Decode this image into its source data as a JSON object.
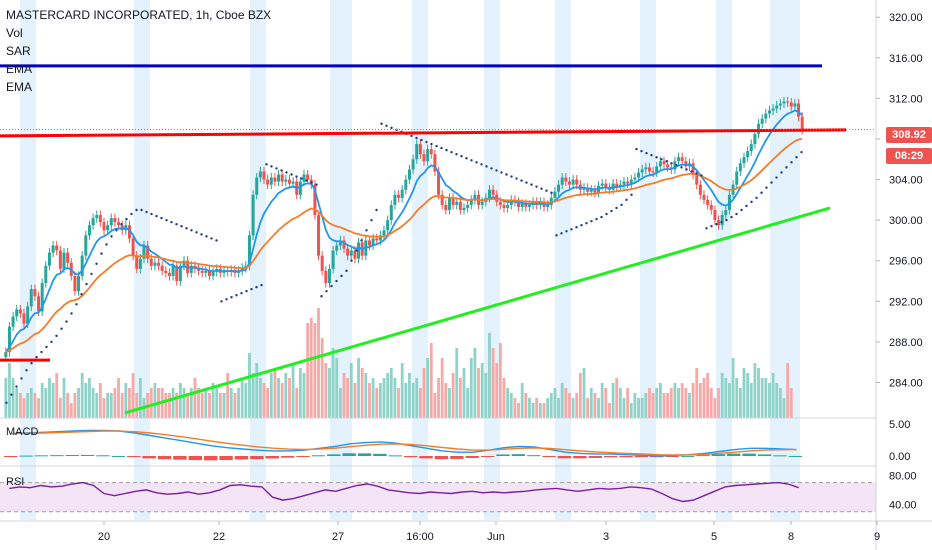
{
  "legend": {
    "title": "MASTERCARD INCORPORATED, 1h, Cboe BZX",
    "items": [
      "Vol",
      "SAR",
      "EMA",
      "EMA"
    ]
  },
  "price_tags": {
    "last": "308.92",
    "countdown": "08:29"
  },
  "panes": {
    "macd": "MACD",
    "rsi": "RSI"
  },
  "colors": {
    "up": "#26a69a",
    "down": "#ef5350",
    "ema_fast": "#2196f3",
    "ema_slow": "#f57c28",
    "sar": "#1e3a8a",
    "resistance_top": "#0000cc",
    "resistance_mid": "#ff0000",
    "support": "#22ee22",
    "session_band": "#e3f2fd",
    "rsi_band": "#f3e5f5",
    "rsi_line": "#7b1fa2"
  },
  "chart_data": [
    {
      "type": "candlestick",
      "title": "MASTERCARD INCORPORATED, 1h, Cboe BZX",
      "y_ticks": [
        284,
        288,
        292,
        296,
        300,
        304,
        308,
        312,
        316,
        320
      ],
      "x_ticks": [
        "20",
        "22",
        "27",
        "16:00",
        "Jun",
        "3",
        "5",
        "8",
        "9"
      ],
      "ylim": [
        280.5,
        321.5
      ],
      "last_price": 308.92,
      "closes": [
        287.0,
        289.5,
        290.5,
        291.2,
        290.8,
        289.8,
        291.5,
        293.2,
        292.5,
        291.0,
        293.8,
        295.5,
        296.8,
        297.5,
        297.0,
        295.2,
        296.8,
        295.8,
        294.5,
        293.0,
        294.5,
        296.5,
        298.5,
        299.5,
        300.2,
        300.5,
        299.8,
        299.0,
        299.5,
        300.2,
        299.8,
        299.5,
        299.0,
        299.5,
        298.2,
        296.5,
        295.2,
        296.2,
        297.5,
        296.2,
        295.5,
        295.8,
        295.5,
        295.0,
        294.8,
        294.5,
        295.5,
        294.0,
        295.5,
        296.0,
        294.8,
        295.5,
        295.2,
        295.0,
        294.8,
        295.0,
        294.5,
        294.9,
        295.2,
        294.8,
        295.0,
        294.9,
        295.1,
        294.8,
        295.0,
        295.3,
        295.5,
        298.5,
        302.5,
        304.2,
        304.8,
        304.0,
        303.5,
        304.2,
        303.8,
        304.5,
        303.8,
        304.0,
        303.6,
        303.8,
        302.5,
        303.8,
        304.5,
        304.0,
        303.5,
        300.5,
        296.5,
        295.0,
        293.8,
        295.2,
        297.0,
        297.5,
        298.0,
        297.2,
        296.5,
        297.0,
        296.2,
        297.8,
        296.5,
        298.0,
        297.5,
        298.2,
        298.0,
        298.5,
        299.0,
        300.0,
        301.5,
        302.5,
        302.2,
        303.0,
        304.0,
        305.0,
        306.0,
        307.5,
        306.5,
        305.8,
        307.0,
        306.5,
        304.8,
        302.5,
        301.5,
        301.0,
        302.2,
        301.5,
        301.8,
        301.0,
        301.2,
        301.5,
        302.0,
        302.5,
        301.5,
        301.8,
        302.2,
        303.0,
        302.5,
        301.8,
        301.5,
        301.2,
        301.5,
        302.0,
        301.8,
        301.3,
        301.6,
        301.3,
        301.5,
        301.8,
        301.5,
        301.8,
        301.3,
        301.5,
        302.2,
        302.8,
        303.5,
        304.2,
        303.8,
        303.5,
        304.0,
        303.5,
        303.0,
        303.2,
        302.8,
        303.0,
        302.7,
        303.4,
        303.6,
        303.2,
        303.0,
        303.6,
        303.3,
        303.5,
        303.8,
        303.6,
        304.0,
        304.2,
        304.7,
        305.0,
        305.2,
        304.8,
        304.7,
        305.3,
        305.8,
        305.5,
        305.2,
        305.0,
        305.8,
        306.2,
        305.8,
        305.3,
        305.6,
        304.5,
        303.5,
        302.5,
        302.0,
        301.5,
        301.0,
        300.0,
        299.5,
        300.5,
        301.0,
        302.5,
        303.5,
        304.8,
        305.6,
        306.2,
        306.8,
        307.5,
        308.5,
        309.5,
        310.0,
        310.5,
        310.8,
        311.0,
        311.3,
        311.5,
        311.7,
        311.6,
        311.2,
        311.5,
        310.2,
        308.9
      ],
      "volume_series": [
        8,
        11,
        8,
        6,
        5,
        4,
        5,
        6,
        5,
        4,
        7,
        6,
        8,
        7,
        9,
        4,
        8,
        5,
        3,
        5,
        6,
        9,
        7,
        8,
        6,
        5,
        7,
        4,
        5,
        5,
        6,
        8,
        5,
        7,
        6,
        9,
        5,
        8,
        4,
        5,
        6,
        7,
        6,
        6,
        5,
        5,
        6,
        5,
        7,
        6,
        5,
        6,
        8,
        6,
        5,
        6,
        5,
        7,
        6,
        5,
        5,
        9,
        6,
        5,
        6,
        8,
        7,
        13,
        9,
        11,
        8,
        7,
        6,
        9,
        10,
        8,
        7,
        9,
        8,
        11,
        6,
        10,
        9,
        19,
        20,
        19,
        22,
        16,
        11,
        10,
        14,
        12,
        6,
        9,
        8,
        11,
        7,
        12,
        10,
        9,
        7,
        8,
        6,
        7,
        8,
        9,
        10,
        8,
        6,
        11,
        7,
        9,
        7,
        8,
        6,
        10,
        12,
        15,
        5,
        8,
        12,
        7,
        6,
        9,
        14,
        8,
        10,
        6,
        12,
        14,
        10,
        11,
        9,
        17,
        14,
        11,
        15,
        8,
        6,
        5,
        4,
        3,
        7,
        5,
        4,
        3,
        4,
        3,
        3,
        4,
        5,
        6,
        4,
        7,
        6,
        5,
        4,
        5,
        9,
        10,
        4,
        6,
        5,
        4,
        7,
        6,
        3,
        7,
        8,
        6,
        4,
        6,
        3,
        5,
        4,
        4,
        5,
        6,
        5,
        6,
        7,
        5,
        5,
        6,
        7,
        6,
        7,
        6,
        5,
        7,
        10,
        7,
        8,
        9,
        6,
        4,
        6,
        9,
        8,
        7,
        12,
        8,
        6,
        10,
        9,
        7,
        11,
        10,
        8,
        8,
        7,
        9,
        7,
        6,
        4,
        11,
        6
      ],
      "sar_series": [
        282.0,
        282.8,
        283.6,
        284.4,
        285.2,
        285.9,
        286.5,
        287.0,
        287.5,
        288.0,
        288.6,
        289.3,
        290.0,
        290.8,
        291.7,
        292.7,
        293.7,
        294.7,
        295.7,
        296.7,
        297.6,
        298.4,
        299.0,
        299.6,
        300.1,
        300.6,
        301.0,
        301.0,
        300.8,
        300.6,
        300.4,
        300.2,
        300.0,
        299.8,
        299.6,
        299.4,
        299.2,
        299.0,
        298.8,
        298.6,
        298.4,
        298.2,
        298.0,
        292.0,
        292.2,
        292.4,
        292.6,
        292.8,
        293.0,
        293.2,
        293.4,
        293.6,
        305.5,
        305.3,
        305.1,
        304.9,
        304.7,
        304.5,
        304.3,
        304.1,
        303.9,
        303.7,
        303.5,
        292.5,
        293.0,
        293.5,
        294.0,
        294.5,
        295.0,
        296.0,
        297.0,
        298.0,
        299.0,
        300.0,
        301.0,
        309.5,
        309.3,
        309.1,
        308.9,
        308.7,
        308.5,
        308.3,
        308.1,
        307.9,
        307.7,
        307.5,
        307.3,
        307.1,
        306.9,
        306.7,
        306.5,
        306.3,
        306.1,
        305.9,
        305.7,
        305.5,
        305.3,
        305.1,
        304.9,
        304.7,
        304.5,
        304.3,
        304.1,
        303.9,
        303.7,
        303.5,
        303.3,
        303.1,
        302.9,
        302.7,
        298.5,
        298.7,
        298.9,
        299.1,
        299.3,
        299.5,
        299.7,
        299.9,
        300.1,
        300.3,
        300.6,
        300.9,
        301.2,
        301.5,
        302.0,
        302.5,
        307.0,
        306.8,
        306.6,
        306.4,
        306.2,
        306.0,
        305.8,
        305.6,
        305.4,
        305.2,
        305.0,
        304.8,
        304.6,
        304.4,
        299.2,
        299.4,
        299.6,
        299.8,
        300.0,
        300.3,
        300.6,
        301.0,
        301.4,
        301.8,
        302.2,
        302.7,
        303.2,
        303.7,
        304.2,
        304.7,
        305.2,
        305.7,
        306.2,
        306.7
      ],
      "macd_series": [
        3.5,
        3.6,
        3.7,
        3.8,
        3.9,
        4.0,
        4.0,
        3.9,
        3.6,
        3.2,
        2.8,
        2.4,
        2.0,
        1.6,
        1.3,
        1.1,
        0.9,
        0.8,
        0.8,
        0.9,
        1.2,
        1.5,
        1.9,
        2.1,
        2.2,
        2.0,
        1.6,
        1.2,
        0.8,
        0.6,
        0.6,
        0.9,
        1.3,
        1.5,
        1.4,
        1.0,
        0.6,
        0.4,
        0.3,
        0.3,
        0.2,
        0.1,
        0.0,
        0.1,
        0.2,
        0.4,
        0.7,
        1.0,
        1.2,
        1.2,
        1.1,
        1.0
      ],
      "rsi_series": [
        62,
        64,
        63,
        66,
        64,
        65,
        68,
        70,
        66,
        55,
        52,
        55,
        58,
        60,
        56,
        54,
        55,
        57,
        54,
        56,
        60,
        66,
        67,
        65,
        64,
        50,
        46,
        48,
        52,
        56,
        60,
        58,
        62,
        66,
        68,
        65,
        60,
        58,
        56,
        55,
        57,
        56,
        55,
        57,
        58,
        56,
        57,
        56,
        57,
        58,
        60,
        61,
        62,
        60,
        58,
        60,
        62,
        61,
        62,
        64,
        63,
        61,
        55,
        48,
        44,
        46,
        52,
        58,
        64,
        66,
        67,
        68,
        69,
        70,
        68,
        63
      ]
    }
  ]
}
